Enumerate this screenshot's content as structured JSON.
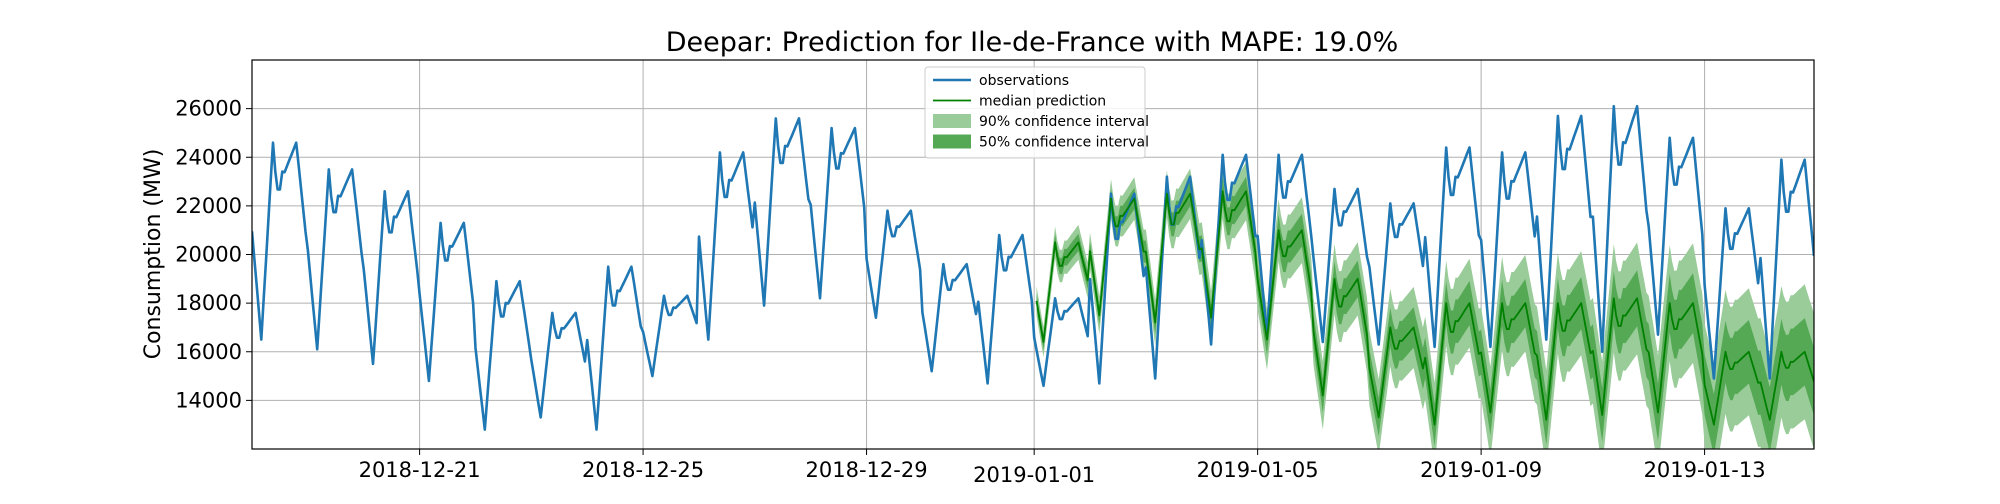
{
  "chart_data": {
    "type": "line",
    "title": "Deepar: Prediction for Ile-de-France with MAPE: 19.0%",
    "xlabel": "",
    "ylabel": "Consumption (MW)",
    "ylim": [
      12000,
      28000
    ],
    "xlim": [
      "2018-12-18T00:00",
      "2019-01-14T23:00"
    ],
    "grid": true,
    "legend_position": "top-center",
    "x_ticks": [
      "2018-12-21",
      "2018-12-25",
      "2018-12-29",
      "2019-01-01",
      "2019-01-05",
      "2019-01-09",
      "2019-01-13"
    ],
    "y_ticks": [
      14000,
      16000,
      18000,
      20000,
      22000,
      24000,
      26000
    ],
    "legend": [
      {
        "label": "observations",
        "kind": "line",
        "color": "#1f77b4"
      },
      {
        "label": "median prediction",
        "kind": "line",
        "color": "#008000"
      },
      {
        "label": "90% confidence interval",
        "kind": "band",
        "color": "#99cc99"
      },
      {
        "label": "50% confidence interval",
        "kind": "band",
        "color": "#55a955"
      }
    ],
    "series": [
      {
        "name": "observations",
        "color": "#1f77b4",
        "days": [
          {
            "date": "2018-12-18",
            "peak": 24600,
            "trough": 16500
          },
          {
            "date": "2018-12-19",
            "peak": 23500,
            "trough": 16100
          },
          {
            "date": "2018-12-20",
            "peak": 22600,
            "trough": 15500
          },
          {
            "date": "2018-12-21",
            "peak": 21300,
            "trough": 14800
          },
          {
            "date": "2018-12-22",
            "peak": 18900,
            "trough": 12800
          },
          {
            "date": "2018-12-23",
            "peak": 17600,
            "trough": 13300
          },
          {
            "date": "2018-12-24",
            "peak": 19500,
            "trough": 12800
          },
          {
            "date": "2018-12-25",
            "peak": 18300,
            "trough": 15000
          },
          {
            "date": "2018-12-26",
            "peak": 24200,
            "trough": 16500
          },
          {
            "date": "2018-12-27",
            "peak": 25600,
            "trough": 17900
          },
          {
            "date": "2018-12-28",
            "peak": 25200,
            "trough": 18200
          },
          {
            "date": "2018-12-29",
            "peak": 21800,
            "trough": 17400
          },
          {
            "date": "2018-12-30",
            "peak": 19600,
            "trough": 15200
          },
          {
            "date": "2018-12-31",
            "peak": 20800,
            "trough": 14700
          },
          {
            "date": "2019-01-01",
            "peak": 18200,
            "trough": 14600
          },
          {
            "date": "2019-01-02",
            "peak": 22500,
            "trough": 14700
          },
          {
            "date": "2019-01-03",
            "peak": 23200,
            "trough": 14900
          },
          {
            "date": "2019-01-04",
            "peak": 24100,
            "trough": 16300
          },
          {
            "date": "2019-01-05",
            "peak": 24100,
            "trough": 16700
          },
          {
            "date": "2019-01-06",
            "peak": 22700,
            "trough": 16400
          },
          {
            "date": "2019-01-07",
            "peak": 22100,
            "trough": 16300
          },
          {
            "date": "2019-01-08",
            "peak": 24400,
            "trough": 16200
          },
          {
            "date": "2019-01-09",
            "peak": 24200,
            "trough": 16200
          },
          {
            "date": "2019-01-10",
            "peak": 25700,
            "trough": 16500
          },
          {
            "date": "2019-01-11",
            "peak": 26100,
            "trough": 16000
          },
          {
            "date": "2019-01-12",
            "peak": 24800,
            "trough": 16700
          },
          {
            "date": "2019-01-13",
            "peak": 21900,
            "trough": 14900
          },
          {
            "date": "2019-01-14",
            "peak": 23900,
            "trough": 14900
          }
        ]
      },
      {
        "name": "median prediction",
        "color": "#008000",
        "start": "2019-01-01T01:00",
        "days": [
          {
            "date": "2019-01-01",
            "peak": 20500,
            "trough": 16400
          },
          {
            "date": "2019-01-02",
            "peak": 22300,
            "trough": 17500
          },
          {
            "date": "2019-01-03",
            "peak": 22500,
            "trough": 17200
          },
          {
            "date": "2019-01-04",
            "peak": 22600,
            "trough": 17400
          },
          {
            "date": "2019-01-05",
            "peak": 21000,
            "trough": 16500
          },
          {
            "date": "2019-01-06",
            "peak": 19000,
            "trough": 14200
          },
          {
            "date": "2019-01-07",
            "peak": 17000,
            "trough": 13300
          },
          {
            "date": "2019-01-08",
            "peak": 18000,
            "trough": 13000
          },
          {
            "date": "2019-01-09",
            "peak": 18000,
            "trough": 13500
          },
          {
            "date": "2019-01-10",
            "peak": 18000,
            "trough": 13200
          },
          {
            "date": "2019-01-11",
            "peak": 18200,
            "trough": 13400
          },
          {
            "date": "2019-01-12",
            "peak": 18000,
            "trough": 13500
          },
          {
            "date": "2019-01-13",
            "peak": 16000,
            "trough": 13000
          },
          {
            "date": "2019-01-14",
            "peak": 16000,
            "trough": 13200
          }
        ]
      }
    ],
    "bands": [
      {
        "name": "90% confidence interval",
        "color": "#99cc99",
        "half_width_start": 600,
        "half_width_end": 2800
      },
      {
        "name": "50% confidence interval",
        "color": "#55a955",
        "half_width_start": 300,
        "half_width_end": 1400
      }
    ]
  }
}
